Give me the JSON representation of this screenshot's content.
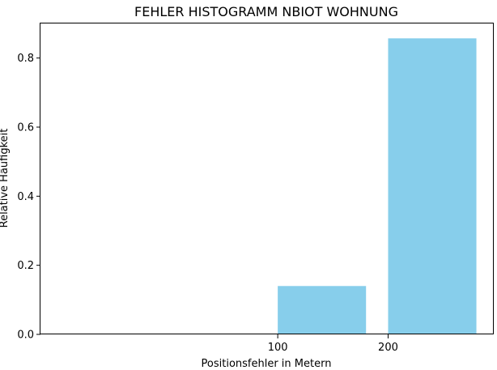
{
  "chart_data": {
    "type": "bar",
    "title": "FEHLER HISTOGRAMM NBIOT WOHNUNG",
    "xlabel": "Positionsfehler in Metern",
    "ylabel": "Relative Häufigkeit",
    "bars": [
      {
        "x_start": 0,
        "x_end": 80,
        "value": 0.0
      },
      {
        "x_start": 100,
        "x_end": 180,
        "value": 0.14
      },
      {
        "x_start": 200,
        "x_end": 280,
        "value": 0.857
      }
    ],
    "xlim": [
      -115,
      295
    ],
    "ylim": [
      0,
      0.9
    ],
    "xticks": [
      100,
      200
    ],
    "xtick_labels": [
      "100",
      "200"
    ],
    "yticks": [
      0.0,
      0.2,
      0.4,
      0.6,
      0.8
    ],
    "ytick_labels": [
      "0.0",
      "0.2",
      "0.4",
      "0.6",
      "0.8"
    ],
    "bar_color": "#87CEEB",
    "grid": false
  }
}
